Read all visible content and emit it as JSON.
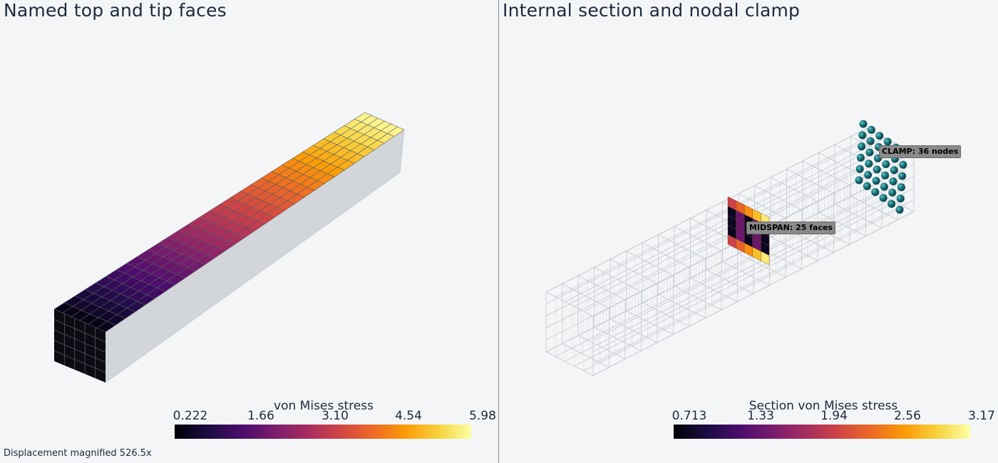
{
  "left_view": {
    "title": "Named top and tip faces",
    "colorbar": {
      "title": "von Mises stress",
      "ticks": [
        "0.222",
        "1.66",
        "3.10",
        "4.54",
        "5.98"
      ],
      "colormap": "inferno"
    },
    "footnote": "Displacement magnified 526.5x"
  },
  "right_view": {
    "title": "Internal section and nodal clamp",
    "colorbar": {
      "title": "Section von Mises stress",
      "ticks": [
        "0.713",
        "1.33",
        "1.94",
        "2.56",
        "3.17"
      ],
      "colormap": "inferno"
    },
    "labels": {
      "midspan": "MIDSPAN: 25 faces",
      "clamp": "CLAMP: 36 nodes"
    }
  },
  "colors": {
    "background": "#f3f5f7",
    "side_face": "#d2d6da",
    "wire": "#c4c8cc",
    "node": "#1b7c82",
    "text": "#1e2a3c"
  }
}
